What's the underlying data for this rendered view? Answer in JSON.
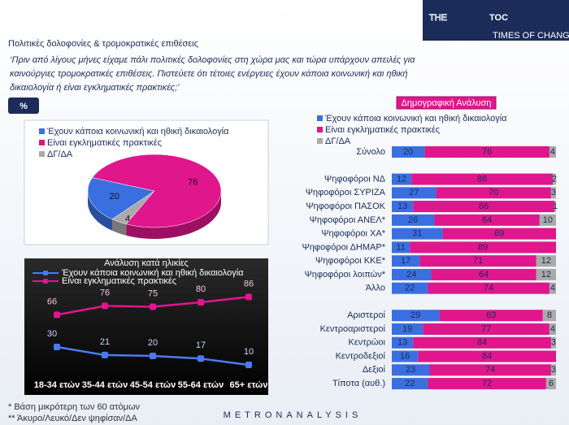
{
  "header": {
    "title": "Πολιτικές δολοφονίες & τρομοκρατικές επιθέσεις",
    "subtitle": [
      "‘Πριν από λίγους μήνες είχαμε πάλι πολιτικές δολοφονίες στη χώρα μας και τώρα υπάρχουν απειλές για",
      "καινούργιες τρομοκρατικές επιθέσεις. Πιστεύετε ότι τέτοιες ενέργειες έχουν κάποια κοινωνική και ηθική",
      "δικαιολογία ή είναι εγκληματικές πρακτικές;’"
    ],
    "badge": "%",
    "logo": {
      "part1": "THE",
      "part2": "TOC",
      "tagline": "TIMES OF CHANGE"
    }
  },
  "footer": {
    "notes": [
      "* Βάση μικρότερη των 60 ατόμων",
      "** Άκυρο/Λευκό/Δεν ψηφίσαν/ΔΑ"
    ],
    "brand": "METRONANALYSIS"
  },
  "chart_data": [
    {
      "type": "pie",
      "labels": [
        "Έχουν κάποια κοινωνική και ηθική δικαιολογία",
        "Είναι εγκληματικές πρακτικές",
        "ΔΓ/ΔΑ"
      ],
      "values": [
        20,
        76,
        4
      ],
      "colors": [
        "#3a6fe0",
        "#e0168c",
        "#aaaaaa"
      ]
    },
    {
      "type": "line",
      "title": "Ανάλυση κατά ηλικίες",
      "categories": [
        "18-34 ετών",
        "35-44 ετών",
        "45-54 ετών",
        "55-64 ετών",
        "65+ ετών"
      ],
      "ylim": [
        0,
        100
      ],
      "series": [
        {
          "name": "Έχουν κάποια κοινωνική και ηθική δικαιολογία",
          "color": "#4a7cf0",
          "values": [
            30,
            21,
            20,
            17,
            10
          ]
        },
        {
          "name": "Είναι εγκληματικές πρακτικές",
          "color": "#e0168c",
          "values": [
            66,
            76,
            75,
            80,
            86
          ]
        }
      ]
    },
    {
      "type": "stacked-bar-horizontal",
      "title": "Δημογραφική Ανάλυση",
      "categories": [
        "Σύνολο",
        null,
        "Ψηφοφόροι ΝΔ",
        "Ψηφοφόροι ΣΥΡΙΖΑ",
        "Ψηφοφόροι ΠΑΣΟΚ",
        "Ψηφοφόροι ΑΝΕΛ*",
        "Ψηφοφόροι ΧΑ*",
        "Ψηφοφόροι ΔΗΜΑΡ*",
        "Ψηφοφόροι ΚΚΕ*",
        "Ψηφοφόροι λοιπών*",
        "Άλλο",
        null,
        "Αριστεροί",
        "Κεντροαριστεροί",
        "Κεντρώοι",
        "Κεντροδεξιοί",
        "Δεξιοί",
        "Τίποτα (αυθ.)"
      ],
      "xlim": [
        0,
        100
      ],
      "series": [
        {
          "name": "Έχουν κάποια κοινωνική και ηθική δικαιολογία",
          "color": "#3a6fe0",
          "values": [
            20,
            null,
            12,
            27,
            13,
            26,
            31,
            11,
            17,
            24,
            22,
            null,
            29,
            19,
            13,
            16,
            23,
            22
          ]
        },
        {
          "name": "Είναι εγκληματικές πρακτικές",
          "color": "#e0168c",
          "values": [
            76,
            null,
            86,
            70,
            86,
            64,
            69,
            89,
            71,
            64,
            74,
            null,
            63,
            77,
            84,
            84,
            74,
            72
          ]
        },
        {
          "name": "ΔΓ/ΔΑ",
          "color": "#aaaaaa",
          "values": [
            4,
            null,
            2,
            3,
            1,
            10,
            null,
            null,
            12,
            12,
            4,
            null,
            8,
            4,
            3,
            null,
            3,
            6
          ]
        }
      ]
    }
  ]
}
